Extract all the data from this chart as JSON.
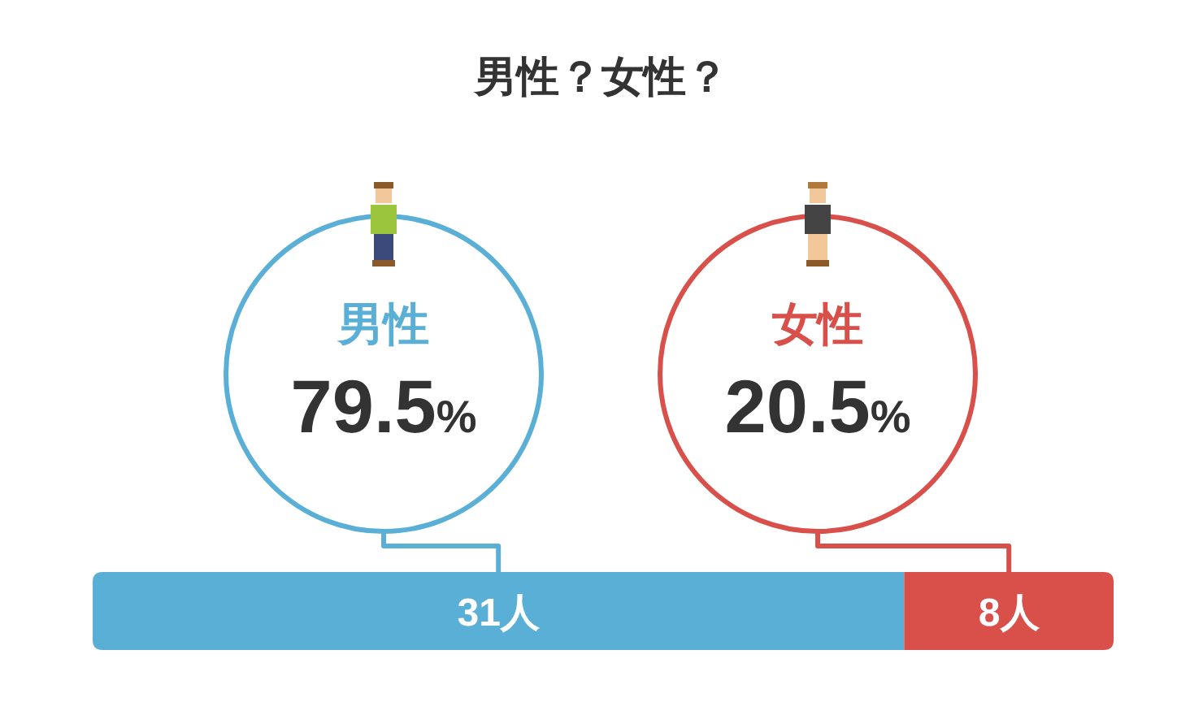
{
  "chart_data": {
    "type": "bar",
    "title": "男性？女性？",
    "orientation": "horizontal",
    "stacked": true,
    "categories": [
      null
    ],
    "series": [
      {
        "name": "男性",
        "color": "#5aafd6",
        "values": [
          31
        ],
        "value_labels": [
          "31人"
        ]
      },
      {
        "name": "女性",
        "color": "#d9504b",
        "values": [
          8
        ],
        "value_labels": [
          "8人"
        ]
      }
    ],
    "annotations": [
      "79.5%",
      "20.5%"
    ]
  }
}
